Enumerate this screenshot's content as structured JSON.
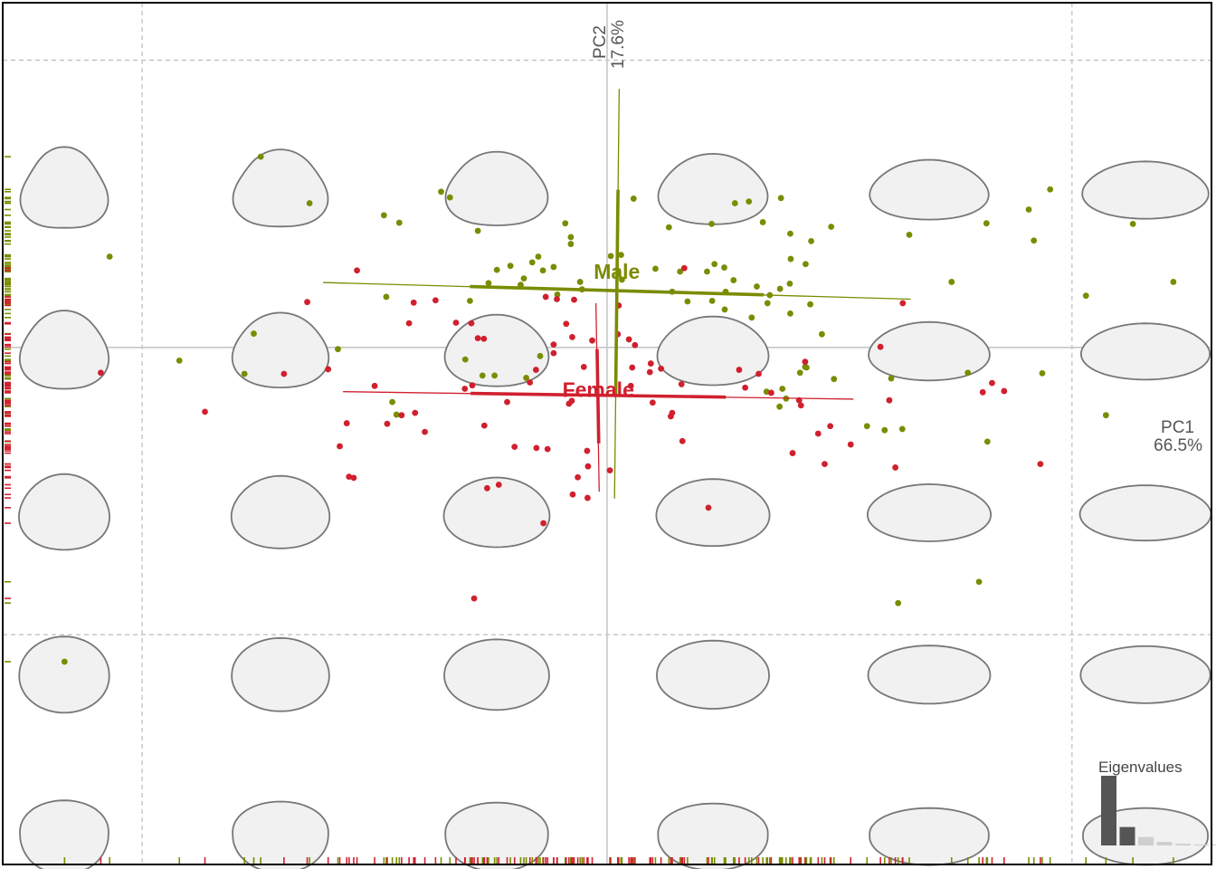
{
  "chart_data": {
    "type": "scatter",
    "title": "",
    "xaxis": {
      "name": "PC1",
      "variance": "66.5%",
      "range": [
        -0.13,
        0.13
      ]
    },
    "yaxis": {
      "name": "PC2",
      "variance": "17.6%",
      "range": [
        -0.09,
        0.06
      ]
    },
    "grid": "dashed",
    "legend": "none",
    "series": [
      {
        "name": "Male",
        "color": "#7a8c00",
        "points": [
          [
            -0.107,
            0.0158
          ],
          [
            -0.092,
            -0.0023
          ],
          [
            -0.078,
            -0.0046
          ],
          [
            -0.076,
            0.0024
          ],
          [
            -0.0745,
            0.0332
          ],
          [
            -0.064,
            0.0251
          ],
          [
            -0.0579,
            -0.0003
          ],
          [
            -0.048,
            0.023
          ],
          [
            -0.0475,
            0.0088
          ],
          [
            -0.0447,
            0.0217
          ],
          [
            -0.0453,
            -0.0117
          ],
          [
            -0.0462,
            -0.0095
          ],
          [
            -0.0357,
            0.0271
          ],
          [
            -0.0338,
            0.0261
          ],
          [
            -0.0295,
            0.0081
          ],
          [
            -0.0305,
            -0.0021
          ],
          [
            -0.0255,
            0.0112
          ],
          [
            -0.0278,
            0.0203
          ],
          [
            -0.0268,
            -0.0049
          ],
          [
            -0.0242,
            -0.0049
          ],
          [
            -0.0237,
            0.0135
          ],
          [
            -0.0208,
            0.0142
          ],
          [
            -0.0186,
            0.0109
          ],
          [
            -0.0179,
            0.012
          ],
          [
            -0.0174,
            -0.0053
          ],
          [
            -0.0161,
            0.0148
          ],
          [
            -0.0138,
            0.0134
          ],
          [
            -0.0144,
            -0.0015
          ],
          [
            -0.0115,
            0.014
          ],
          [
            -0.0107,
            0.0092
          ],
          [
            -0.009,
            0.0216
          ],
          [
            -0.0078,
            0.0192
          ],
          [
            -0.0078,
            0.018
          ],
          [
            -0.0058,
            0.0114
          ],
          [
            0.0057,
            0.0259
          ],
          [
            0.0032,
            0.0118
          ],
          [
            0.003,
            0.0161
          ],
          [
            0.0008,
            0.0159
          ],
          [
            0.0104,
            0.0137
          ],
          [
            0.0133,
            0.0209
          ],
          [
            0.014,
            0.0097
          ],
          [
            0.0157,
            0.0132
          ],
          [
            0.0173,
            0.008
          ],
          [
            0.0215,
            0.0132
          ],
          [
            0.0225,
            0.0215
          ],
          [
            0.0226,
            0.0081
          ],
          [
            0.0231,
            0.0145
          ],
          [
            0.0253,
            0.0066
          ],
          [
            0.0252,
            0.0139
          ],
          [
            0.0255,
            0.0097
          ],
          [
            0.0272,
            0.0117
          ],
          [
            0.0275,
            0.0251
          ],
          [
            0.0311,
            0.0052
          ],
          [
            0.0305,
            0.0254
          ],
          [
            0.0322,
            0.0106
          ],
          [
            0.0335,
            0.0218
          ],
          [
            0.0345,
            0.0077
          ],
          [
            0.035,
            0.0091
          ],
          [
            0.0343,
            -0.0077
          ],
          [
            0.0374,
            0.026
          ],
          [
            0.0372,
            0.0102
          ],
          [
            0.0393,
            0.0111
          ],
          [
            0.0394,
            0.0059
          ],
          [
            0.0395,
            0.0154
          ],
          [
            0.0394,
            0.0198
          ],
          [
            0.0371,
            -0.0103
          ],
          [
            0.0377,
            -0.0072
          ],
          [
            0.0385,
            -0.0089
          ],
          [
            0.0415,
            -0.0044
          ],
          [
            0.0426,
            -0.0034
          ],
          [
            0.0429,
            -0.0035
          ],
          [
            0.0439,
            0.0185
          ],
          [
            0.0427,
            0.0145
          ],
          [
            0.0437,
            0.0075
          ],
          [
            0.0462,
            0.0023
          ],
          [
            0.0482,
            0.021
          ],
          [
            0.0488,
            -0.0055
          ],
          [
            0.0559,
            -0.0137
          ],
          [
            0.0597,
            -0.0144
          ],
          [
            0.0611,
            -0.0054
          ],
          [
            0.0635,
            -0.0142
          ],
          [
            0.065,
            0.0196
          ],
          [
            0.0741,
            0.0114
          ],
          [
            0.0776,
            -0.0044
          ],
          [
            0.0816,
            0.0216
          ],
          [
            0.0818,
            -0.0164
          ],
          [
            0.0907,
            0.024
          ],
          [
            0.103,
            0.009
          ],
          [
            0.0953,
            0.0275
          ],
          [
            0.0936,
            -0.0045
          ],
          [
            -0.1167,
            -0.0547
          ],
          [
            0.0626,
            -0.0445
          ],
          [
            0.08,
            -0.0408
          ],
          [
            0.0918,
            0.0186
          ],
          [
            0.1073,
            -0.0118
          ],
          [
            -0.0148,
            0.0158
          ],
          [
            0.1131,
            0.0215
          ],
          [
            0.1218,
            0.0114
          ],
          [
            -0.0054,
            0.0101
          ]
        ]
      },
      {
        "name": "Female",
        "color": "#d0202e",
        "points": [
          [
            -0.1089,
            -0.0044
          ],
          [
            -0.0865,
            -0.0112
          ],
          [
            -0.0695,
            -0.0046
          ],
          [
            -0.0645,
            0.0079
          ],
          [
            -0.06,
            -0.0038
          ],
          [
            -0.0575,
            -0.0172
          ],
          [
            -0.056,
            -0.0132
          ],
          [
            -0.0555,
            -0.0225
          ],
          [
            -0.0545,
            -0.0227
          ],
          [
            -0.0538,
            0.0134
          ],
          [
            -0.05,
            -0.0067
          ],
          [
            -0.0473,
            -0.0133
          ],
          [
            -0.0442,
            -0.0118
          ],
          [
            -0.0426,
            0.0042
          ],
          [
            -0.0416,
            0.0078
          ],
          [
            -0.0413,
            -0.0114
          ],
          [
            -0.0392,
            -0.0147
          ],
          [
            -0.0369,
            0.0082
          ],
          [
            -0.0325,
            0.0043
          ],
          [
            -0.0306,
            -0.0072
          ],
          [
            -0.0292,
            0.0042
          ],
          [
            -0.029,
            -0.0066
          ],
          [
            -0.0278,
            0.0016
          ],
          [
            -0.0265,
            0.0015
          ],
          [
            -0.0264,
            -0.0136
          ],
          [
            -0.0258,
            -0.0245
          ],
          [
            -0.0233,
            -0.0239
          ],
          [
            -0.0199,
            -0.0173
          ],
          [
            -0.0166,
            -0.0061
          ],
          [
            -0.0152,
            -0.0175
          ],
          [
            -0.0153,
            -0.0039
          ],
          [
            -0.0132,
            0.0088
          ],
          [
            -0.0128,
            -0.0177
          ],
          [
            -0.0137,
            -0.0306
          ],
          [
            -0.0115,
            0.0005
          ],
          [
            -0.0108,
            0.0084
          ],
          [
            -0.0115,
            -0.001
          ],
          [
            -0.0088,
            0.0041
          ],
          [
            -0.0076,
            -0.0093
          ],
          [
            -0.0075,
            0.0018
          ],
          [
            -0.0074,
            -0.0256
          ],
          [
            -0.0071,
            0.0083
          ],
          [
            -0.0063,
            -0.0226
          ],
          [
            -0.0041,
            -0.0207
          ],
          [
            -0.0043,
            -0.018
          ],
          [
            -0.0042,
            -0.0262
          ],
          [
            -0.0032,
            0.0012
          ],
          [
            0.0006,
            -0.0214
          ],
          [
            0.0025,
            0.0073
          ],
          [
            0.0023,
            0.0023
          ],
          [
            0.0051,
            -0.0067
          ],
          [
            0.0054,
            -0.0035
          ],
          [
            0.0092,
            -0.0043
          ],
          [
            0.0098,
            -0.0096
          ],
          [
            0.0094,
            -0.0028
          ],
          [
            0.0116,
            -0.0037
          ],
          [
            0.0137,
            -0.012
          ],
          [
            0.014,
            -0.0114
          ],
          [
            0.0162,
            -0.0163
          ],
          [
            0.0166,
            0.0138
          ],
          [
            0.0218,
            -0.0279
          ],
          [
            0.0284,
            -0.0039
          ],
          [
            0.0297,
            -0.007
          ],
          [
            0.0326,
            -0.0046
          ],
          [
            0.0353,
            -0.0079
          ],
          [
            0.0399,
            -0.0184
          ],
          [
            0.0426,
            -0.0025
          ],
          [
            0.0413,
            -0.0092
          ],
          [
            0.0417,
            -0.0101
          ],
          [
            0.0454,
            -0.015
          ],
          [
            0.0468,
            -0.0203
          ],
          [
            0.048,
            -0.0137
          ],
          [
            0.0524,
            -0.0169
          ],
          [
            0.0588,
            0.0001
          ],
          [
            0.0607,
            -0.0092
          ],
          [
            0.062,
            -0.0209
          ],
          [
            0.0636,
            0.0077
          ],
          [
            0.0808,
            -0.0078
          ],
          [
            0.0932,
            -0.0203
          ],
          [
            0.0828,
            -0.0062
          ],
          [
            0.0854,
            -0.0076
          ],
          [
            -0.0286,
            -0.0437
          ],
          [
            -0.0215,
            -0.0095
          ],
          [
            0.016,
            -0.0064
          ],
          [
            -0.0082,
            -0.0098
          ],
          [
            -0.005,
            -0.0034
          ],
          [
            0.0047,
            0.0014
          ],
          [
            0.006,
            0.0004
          ]
        ]
      }
    ],
    "group_axes": [
      {
        "name": "Male",
        "center": [
          0.0021,
          0.0099
        ],
        "pc1": [
          [
            -0.0611,
            0.0113
          ],
          [
            0.0653,
            0.0084
          ]
        ],
        "pc2": [
          [
            0.0026,
            0.045
          ],
          [
            0.0016,
            -0.0263
          ]
        ]
      },
      {
        "name": "Female",
        "center": [
          -0.0019,
          -0.0083
        ],
        "pc1": [
          [
            -0.0568,
            -0.0077
          ],
          [
            0.053,
            -0.009
          ]
        ],
        "pc2": [
          [
            -0.0024,
            0.0077
          ],
          [
            -0.0017,
            -0.0251
          ]
        ]
      }
    ],
    "eigenvalues": {
      "label": "Eigenvalues",
      "values": [
        66.5,
        17.6,
        8.1,
        3.4,
        1.6,
        0.9,
        0.6
      ]
    }
  }
}
